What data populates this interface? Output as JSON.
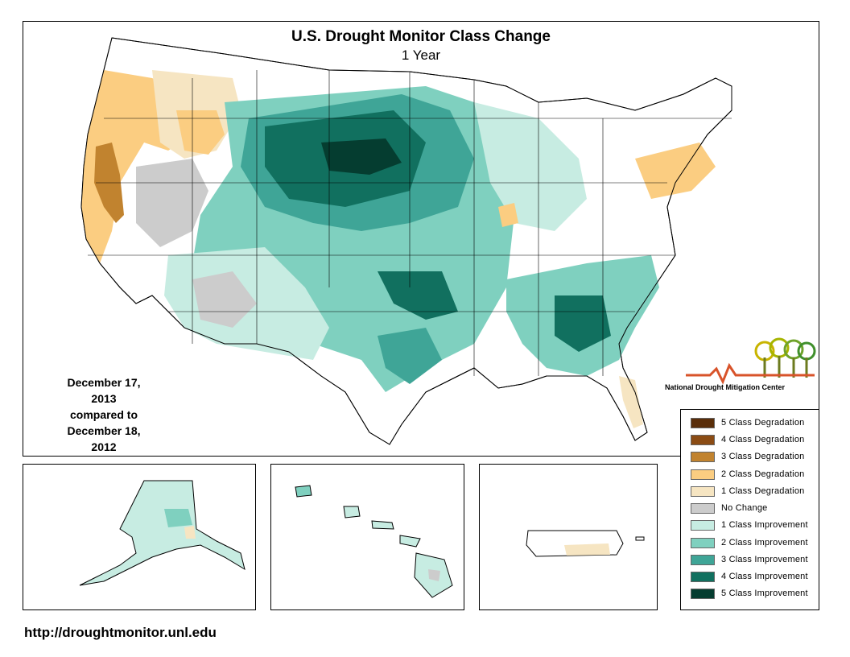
{
  "map": {
    "title": "U.S. Drought Monitor Class Change",
    "subtitle": "1 Year",
    "date_line1": "December 17, 2013",
    "date_line2": "compared to",
    "date_line3": "December 18, 2012"
  },
  "logo": {
    "text": "National Drought Mitigation Center"
  },
  "footer": {
    "url": "http://droughtmonitor.unl.edu"
  },
  "legend": {
    "items": [
      {
        "label": "5 Class Degradation",
        "color": "#5a2e0a"
      },
      {
        "label": "4 Class Degradation",
        "color": "#8b4c14"
      },
      {
        "label": "3 Class Degradation",
        "color": "#c1832f"
      },
      {
        "label": "2 Class Degradation",
        "color": "#fbcd81"
      },
      {
        "label": "1 Class Degradation",
        "color": "#f6e5c2"
      },
      {
        "label": "No Change",
        "color": "#cccccc"
      },
      {
        "label": "1 Class Improvement",
        "color": "#c7ece2"
      },
      {
        "label": "2 Class Improvement",
        "color": "#7fd0bf"
      },
      {
        "label": "3 Class Improvement",
        "color": "#3fa597"
      },
      {
        "label": "4 Class Improvement",
        "color": "#11705f"
      },
      {
        "label": "5 Class Improvement",
        "color": "#053d30"
      }
    ]
  },
  "colors": {
    "deg3": "#c1832f",
    "deg2": "#fbcd81",
    "deg1": "#f6e5c2",
    "nochange": "#cccccc",
    "imp1": "#c7ece2",
    "imp2": "#7fd0bf",
    "imp3": "#3fa597",
    "imp4": "#11705f",
    "imp5": "#053d30"
  }
}
